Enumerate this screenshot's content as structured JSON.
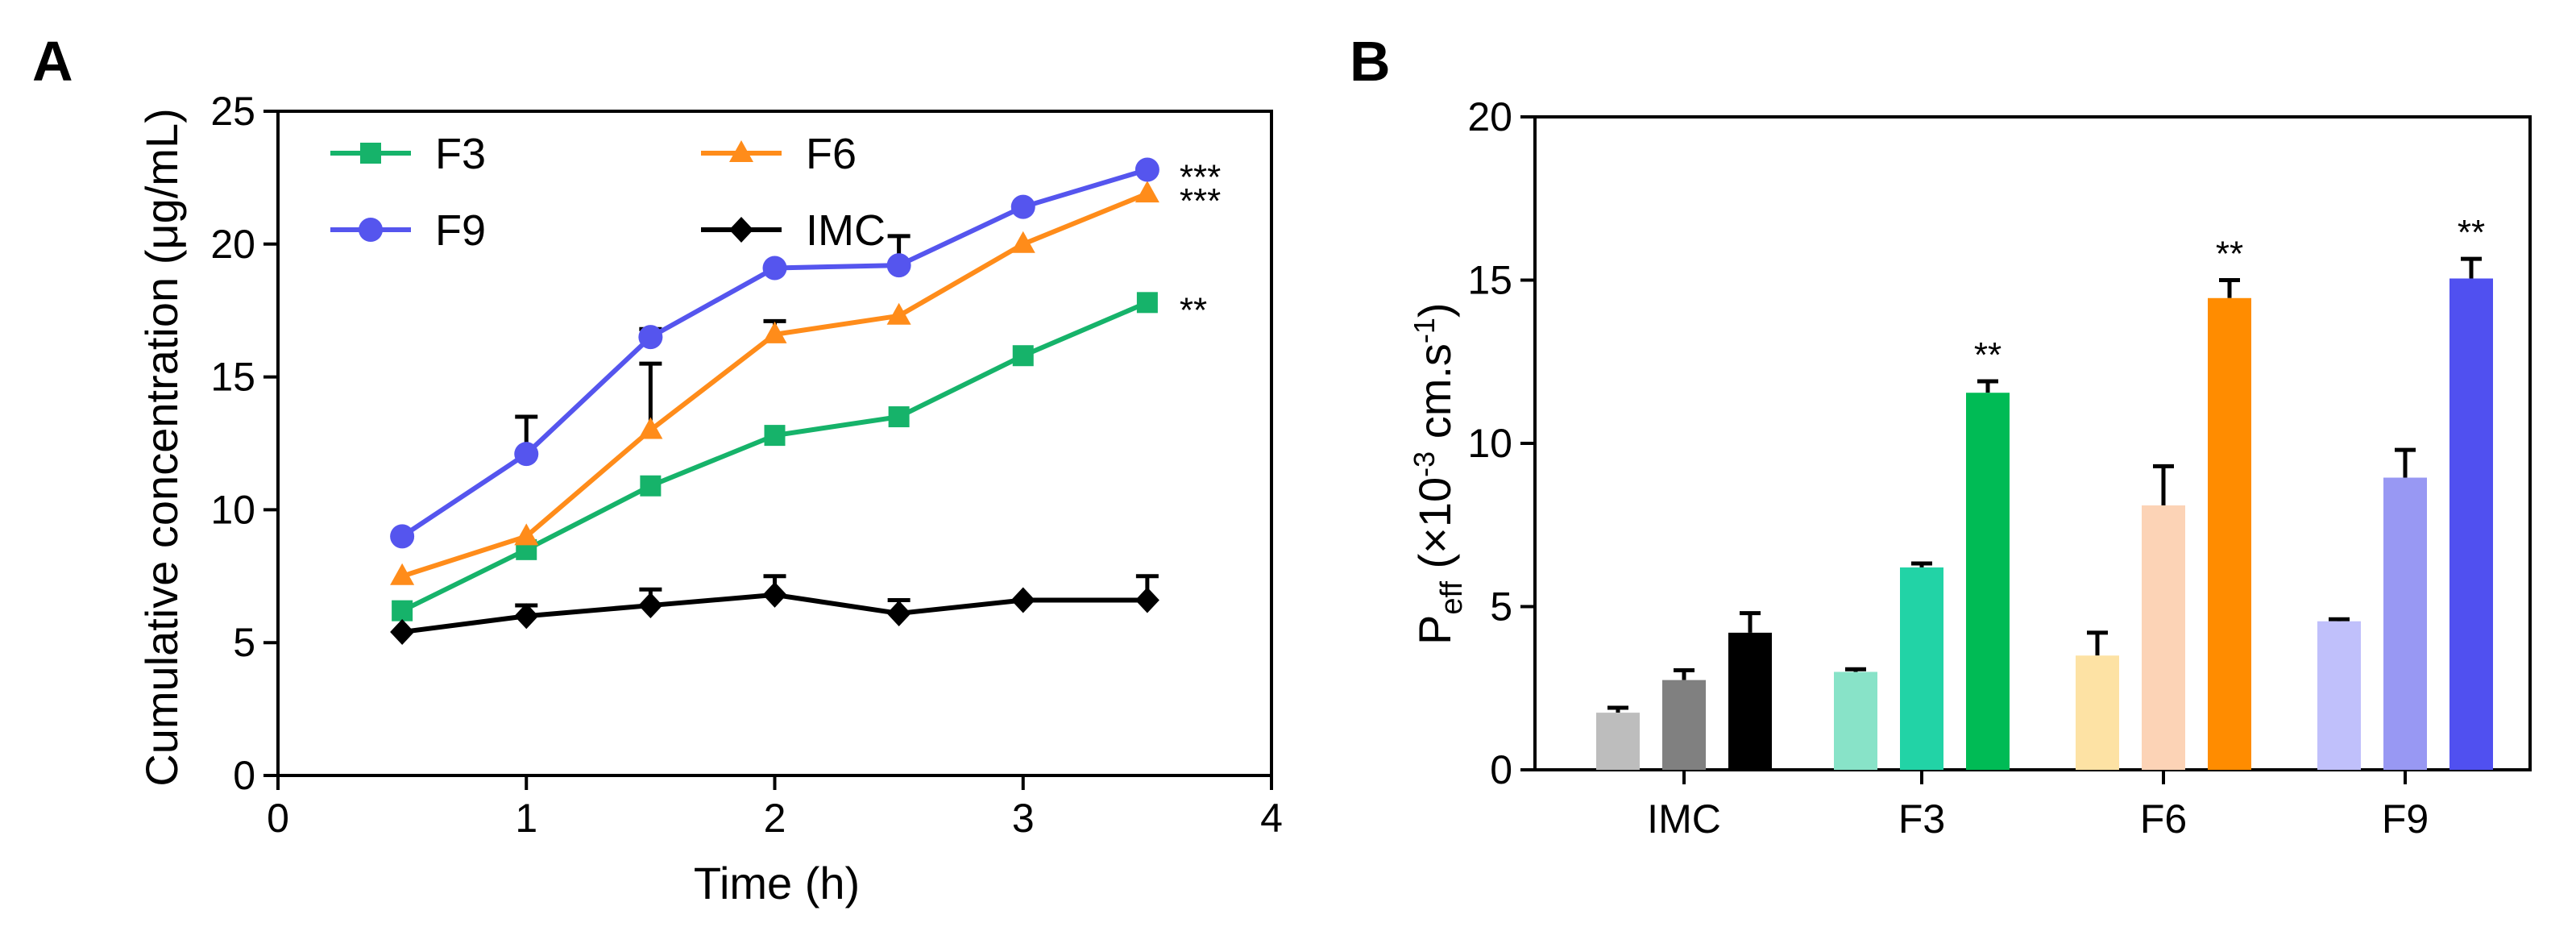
{
  "chart_data": [
    {
      "panel": "A",
      "type": "line",
      "xlabel": "Time (h)",
      "ylabel": "Cumulative concentration (μg/mL)",
      "xlim": [
        0,
        4
      ],
      "ylim": [
        0,
        25
      ],
      "xticks": [
        "0",
        "1",
        "2",
        "3",
        "4"
      ],
      "yticks": [
        "0",
        "5",
        "10",
        "15",
        "20",
        "25"
      ],
      "x": [
        0.5,
        1,
        1.5,
        2,
        2.5,
        3,
        3.5
      ],
      "series": [
        {
          "name": "F3",
          "color": "#16b36a",
          "marker": "square",
          "values": [
            6.2,
            8.5,
            10.9,
            12.8,
            13.5,
            15.8,
            17.8
          ],
          "errors": [
            0,
            0,
            0,
            0,
            0,
            0,
            0
          ],
          "significance": "**"
        },
        {
          "name": "F6",
          "color": "#ff8c1a",
          "marker": "triangle",
          "values": [
            7.5,
            9.0,
            13.0,
            16.6,
            17.3,
            20.0,
            21.9
          ],
          "errors": [
            0,
            0,
            2.5,
            0.5,
            0,
            0,
            0
          ],
          "significance": "***"
        },
        {
          "name": "F9",
          "color": "#5555ee",
          "marker": "circle",
          "values": [
            9.0,
            12.1,
            16.5,
            19.1,
            19.2,
            21.4,
            22.8
          ],
          "errors": [
            0,
            1.4,
            0.3,
            0,
            1.1,
            0,
            0
          ],
          "significance": "***"
        },
        {
          "name": "IMC",
          "color": "#000000",
          "marker": "diamond",
          "values": [
            5.4,
            6.0,
            6.4,
            6.8,
            6.1,
            6.6,
            6.6
          ],
          "errors": [
            0,
            0.4,
            0.6,
            0.7,
            0.5,
            0,
            0.9
          ],
          "significance": ""
        }
      ],
      "legend_position": "top-left"
    },
    {
      "panel": "B",
      "type": "bar",
      "xlabel": "",
      "ylabel_main": "P",
      "ylabel_sub": "eff",
      "ylabel_rest": " (×10",
      "ylabel_sup1": "-3",
      "ylabel_units": " cm.s",
      "ylabel_sup2": "-1",
      "ylabel_close": ")",
      "ylim": [
        0,
        20
      ],
      "yticks": [
        "0",
        "5",
        "10",
        "15",
        "20"
      ],
      "categories": [
        "IMC",
        "F3",
        "F6",
        "F9"
      ],
      "groups": [
        {
          "name": "IMC",
          "values": [
            1.75,
            2.75,
            4.2
          ],
          "errors": [
            0.15,
            0.3,
            0.6
          ],
          "colors": [
            "#bdbdbd",
            "#808080",
            "#000000"
          ],
          "significance": [
            "",
            "",
            ""
          ]
        },
        {
          "name": "F3",
          "values": [
            3.0,
            6.2,
            11.55
          ],
          "errors": [
            0.08,
            0.12,
            0.35
          ],
          "colors": [
            "#88e3c8",
            "#22d3a6",
            "#00bb55"
          ],
          "significance": [
            "",
            "",
            "**"
          ]
        },
        {
          "name": "F6",
          "values": [
            3.5,
            8.1,
            14.45
          ],
          "errors": [
            0.7,
            1.2,
            0.55
          ],
          "colors": [
            "#fde2a4",
            "#fcd3b6",
            "#ff8c00"
          ],
          "significance": [
            "",
            "",
            "**"
          ]
        },
        {
          "name": "F9",
          "values": [
            4.55,
            8.95,
            15.05
          ],
          "errors": [
            0.06,
            0.85,
            0.6
          ],
          "colors": [
            "#c0c0fb",
            "#9898f3",
            "#5050f0"
          ],
          "significance": [
            "",
            "",
            "**"
          ]
        }
      ]
    }
  ]
}
